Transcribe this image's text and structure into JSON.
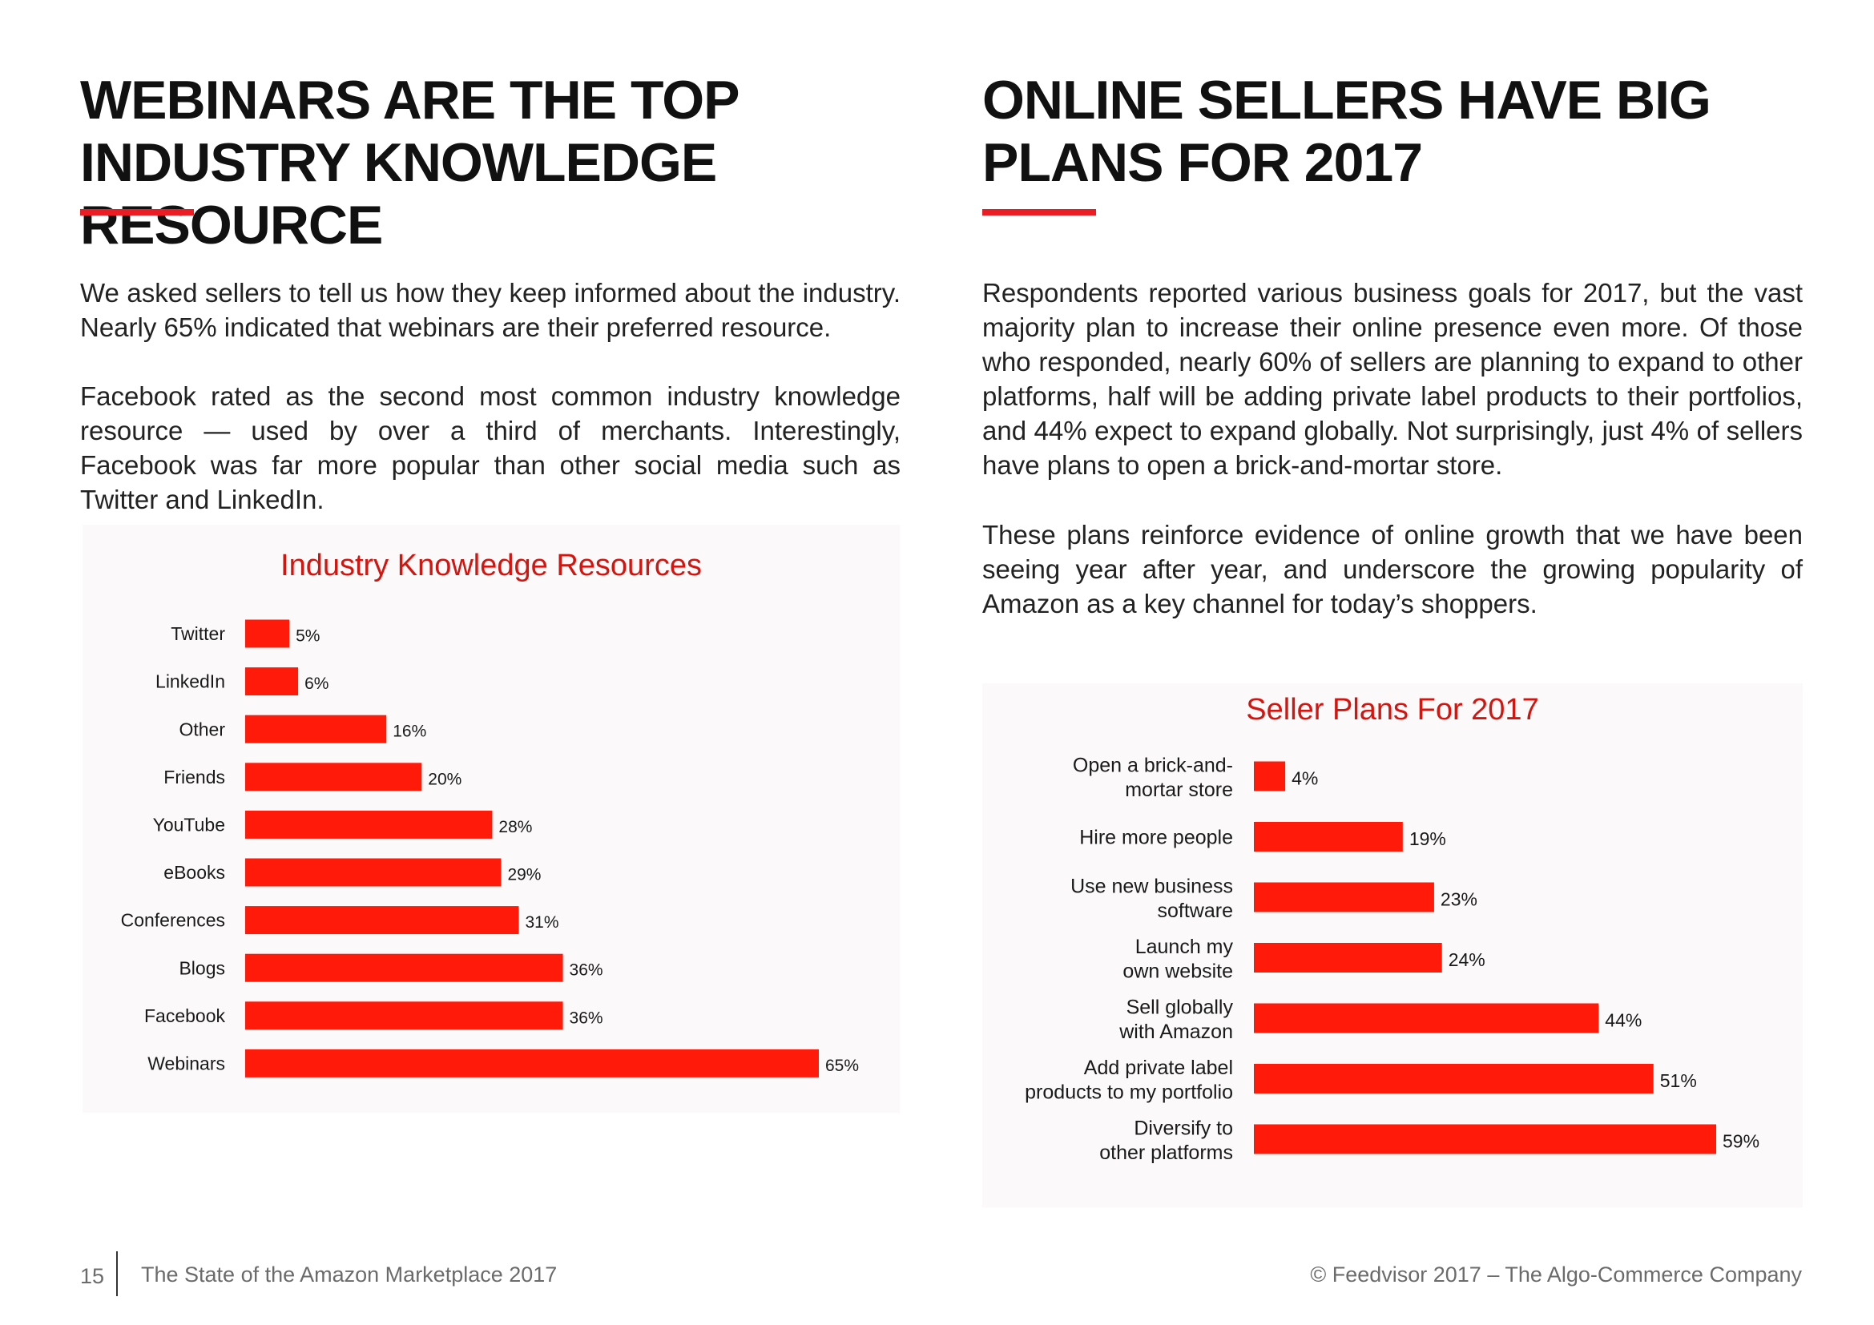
{
  "left": {
    "heading": "WEBINARS ARE THE TOP INDUSTRY KNOWLEDGE RESOURCE",
    "paragraph1": "We asked sellers to tell us how they keep informed about the industry. Nearly 65% indicated that webinars are their preferred resource.",
    "paragraph2": "Facebook rated as the second most common industry knowledge resource — used by over a third of merchants. Interestingly, Facebook was far more popular than other social media such as Twitter and LinkedIn."
  },
  "right": {
    "heading": "ONLINE SELLERS HAVE BIG PLANS FOR 2017",
    "paragraph1": "Respondents reported various business goals for 2017, but the vast majority plan to increase their online presence even more. Of those who responded, nearly 60% of sellers are planning to expand to other platforms, half will be adding private label products to their portfolios, and 44% expect to expand globally. Not surprisingly, just 4% of sellers have plans to open a brick-and-mortar store.",
    "paragraph2": "These plans reinforce evidence of online growth that we have been seeing year after year, and underscore the growing popularity of Amazon as a key channel for today’s shoppers."
  },
  "colors": {
    "accent": "#ec1c24",
    "bar": "#ff1a0a",
    "title": "#d4140f",
    "panel": "#fbf9f9"
  },
  "chart_data": [
    {
      "type": "bar",
      "orientation": "horizontal",
      "title": "Industry Knowledge Resources",
      "categories": [
        "Twitter",
        "LinkedIn",
        "Other",
        "Friends",
        "YouTube",
        "eBooks",
        "Conferences",
        "Blogs",
        "Facebook",
        "Webinars"
      ],
      "values": [
        5,
        6,
        16,
        20,
        28,
        29,
        31,
        36,
        36,
        65
      ],
      "labels": [
        "5%",
        "6%",
        "16%",
        "20%",
        "28%",
        "29%",
        "31%",
        "36%",
        "36%",
        "65%"
      ],
      "xlim": [
        0,
        65
      ],
      "unit": "%",
      "grid": false,
      "legend": "none"
    },
    {
      "type": "bar",
      "orientation": "horizontal",
      "title": "Seller Plans For 2017",
      "categories": [
        [
          "Open a brick-and-",
          "mortar store"
        ],
        [
          "Hire more people"
        ],
        [
          "Use new business",
          "software"
        ],
        [
          "Launch my",
          "own website"
        ],
        [
          "Sell globally",
          "with Amazon"
        ],
        [
          "Add private label",
          "products to my portfolio"
        ],
        [
          "Diversify to",
          "other platforms"
        ]
      ],
      "values": [
        4,
        19,
        23,
        24,
        44,
        51,
        59
      ],
      "labels": [
        "4%",
        "19%",
        "23%",
        "24%",
        "44%",
        "51%",
        "59%"
      ],
      "xlim": [
        0,
        59
      ],
      "unit": "%",
      "grid": false,
      "legend": "none"
    }
  ],
  "footer": {
    "page_number": "15",
    "document_title": "The State of the Amazon Marketplace 2017",
    "copyright": "© Feedvisor 2017 – The Algo-Commerce Company"
  }
}
